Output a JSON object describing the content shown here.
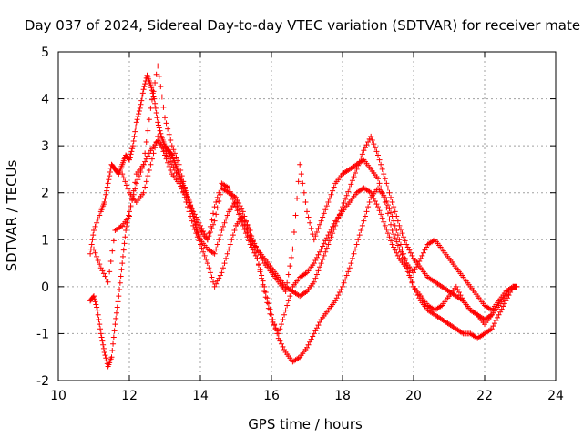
{
  "chart_data": {
    "type": "scatter",
    "title": "Day 037 of 2024, Sidereal Day-to-day VTEC variation (SDTVAR) for receiver mate",
    "xlabel": "GPS time / hours",
    "ylabel": "SDTVAR / TECUs",
    "xlim": [
      10,
      24
    ],
    "ylim": [
      -2,
      5
    ],
    "xticks": [
      10,
      12,
      14,
      16,
      18,
      20,
      22,
      24
    ],
    "yticks": [
      -2,
      -1,
      0,
      1,
      2,
      3,
      4,
      5
    ],
    "grid": true,
    "marker": "+",
    "color": "#ff0000",
    "series": [
      {
        "name": "trace-1",
        "x": [
          10.9,
          11.0,
          11.2,
          11.3,
          11.4,
          11.5,
          11.6,
          11.7,
          11.8,
          11.9,
          12.0,
          12.1,
          12.2,
          12.3,
          12.4,
          12.5,
          12.6,
          12.7,
          12.8,
          12.9,
          13.0,
          13.1,
          13.2,
          13.3,
          13.4,
          13.5,
          13.6,
          13.7,
          13.8,
          13.9,
          14.0,
          14.2,
          14.4,
          14.6,
          14.8,
          15.0,
          15.2,
          15.4,
          15.6,
          15.8,
          16.0,
          16.2,
          16.4,
          16.6,
          16.8,
          17.0,
          17.2,
          17.4,
          17.6,
          17.8,
          18.0,
          18.2,
          18.4,
          18.6,
          18.8,
          19.0,
          19.2,
          19.4,
          19.6,
          19.8,
          20.0,
          20.2,
          20.4,
          20.6,
          20.8,
          21.0,
          21.2,
          21.4,
          21.6,
          21.8,
          22.0,
          22.2,
          22.4,
          22.6,
          22.8,
          22.9
        ],
        "y": [
          0.7,
          1.2,
          1.6,
          1.8,
          2.2,
          2.6,
          2.5,
          2.4,
          2.6,
          2.8,
          2.7,
          3.0,
          3.5,
          3.8,
          4.2,
          4.5,
          4.3,
          4.0,
          3.5,
          3.2,
          3.0,
          2.9,
          2.8,
          2.6,
          2.4,
          2.2,
          2.0,
          1.8,
          1.5,
          1.2,
          1.0,
          0.8,
          0.7,
          1.2,
          1.6,
          1.8,
          1.4,
          1.0,
          0.8,
          0.6,
          0.4,
          0.2,
          0.0,
          -0.1,
          -0.2,
          -0.1,
          0.1,
          0.5,
          0.9,
          1.3,
          1.7,
          2.1,
          2.5,
          2.9,
          3.2,
          2.8,
          2.3,
          1.8,
          1.3,
          0.9,
          0.6,
          0.4,
          0.2,
          0.1,
          0.0,
          -0.1,
          -0.2,
          -0.3,
          -0.5,
          -0.6,
          -0.7,
          -0.6,
          -0.4,
          -0.2,
          0.0,
          0.0
        ]
      },
      {
        "name": "trace-2",
        "x": [
          10.9,
          11.0,
          11.1,
          11.2,
          11.3,
          11.4,
          11.5,
          11.6,
          11.7,
          11.8,
          11.9,
          12.0,
          12.2,
          12.4,
          12.6,
          12.8,
          13.0,
          13.2,
          13.4,
          13.6,
          13.8,
          14.0,
          14.2,
          14.4,
          14.6,
          14.8,
          15.0,
          15.2,
          15.4,
          15.6,
          15.8,
          16.0,
          16.2,
          16.4,
          16.6,
          16.8,
          17.0,
          17.2,
          17.4,
          17.6,
          17.8,
          18.0,
          18.2,
          18.4,
          18.6,
          18.8,
          19.0,
          19.2,
          19.4,
          19.6,
          19.8,
          20.0,
          20.2,
          20.4,
          20.6,
          20.8,
          21.0,
          21.2,
          21.4,
          21.6,
          21.8,
          22.0,
          22.2,
          22.4,
          22.6,
          22.8,
          22.9
        ],
        "y": [
          -0.3,
          -0.2,
          -0.5,
          -1.0,
          -1.4,
          -1.7,
          -1.5,
          -0.8,
          -0.2,
          0.5,
          1.2,
          1.6,
          2.2,
          2.6,
          2.9,
          3.1,
          2.9,
          2.6,
          2.3,
          1.8,
          1.3,
          0.9,
          0.5,
          0.0,
          0.3,
          0.8,
          1.3,
          1.5,
          1.2,
          0.6,
          0.0,
          -0.6,
          -1.1,
          -1.4,
          -1.6,
          -1.5,
          -1.3,
          -1.0,
          -0.7,
          -0.5,
          -0.3,
          0.0,
          0.4,
          0.9,
          1.4,
          1.9,
          2.1,
          1.9,
          1.5,
          1.0,
          0.5,
          0.0,
          -0.3,
          -0.5,
          -0.6,
          -0.7,
          -0.8,
          -0.9,
          -1.0,
          -1.0,
          -1.1,
          -1.0,
          -0.9,
          -0.6,
          -0.3,
          0.0,
          0.0
        ]
      },
      {
        "name": "trace-3",
        "x": [
          11.0,
          11.2,
          11.4,
          11.6,
          11.8,
          12.0,
          12.2,
          12.4,
          12.6,
          12.8,
          13.0,
          13.2,
          13.4,
          13.6,
          13.8,
          14.0,
          14.2,
          14.4,
          14.6,
          14.8,
          15.0,
          15.2,
          15.4,
          15.6,
          15.8,
          16.0,
          16.2,
          16.4,
          16.6,
          16.8,
          17.0,
          17.2,
          17.4,
          17.6,
          17.8,
          18.0,
          18.2,
          18.4,
          18.6,
          18.8,
          19.0,
          19.2,
          19.4,
          19.6,
          19.8,
          20.0,
          20.2,
          20.4,
          20.6,
          20.8,
          21.0,
          21.2,
          21.4,
          21.6,
          21.8,
          22.0,
          22.2,
          22.4,
          22.6,
          22.8
        ],
        "y": [
          0.8,
          0.4,
          0.1,
          1.2,
          1.3,
          1.5,
          2.4,
          2.6,
          3.8,
          4.7,
          3.6,
          3.0,
          2.6,
          2.0,
          1.5,
          1.2,
          1.0,
          1.4,
          2.1,
          2.0,
          1.9,
          1.6,
          1.1,
          0.8,
          0.5,
          0.3,
          0.1,
          -0.1,
          0.8,
          2.6,
          1.6,
          1.0,
          1.4,
          1.8,
          2.2,
          2.4,
          2.5,
          2.6,
          2.7,
          2.5,
          2.3,
          1.8,
          1.2,
          0.8,
          0.5,
          0.3,
          0.6,
          0.9,
          1.0,
          0.8,
          0.6,
          0.4,
          0.2,
          0.0,
          -0.2,
          -0.4,
          -0.5,
          -0.3,
          -0.1,
          0.0
        ]
      },
      {
        "name": "trace-4",
        "x": [
          11.8,
          12.0,
          12.2,
          12.4,
          12.6,
          12.8,
          13.0,
          13.2,
          13.4,
          13.6,
          13.8,
          14.0,
          14.2,
          14.4,
          14.6,
          14.8,
          15.0,
          15.2,
          15.4,
          15.6,
          15.8,
          16.0,
          16.2,
          16.4,
          16.6,
          16.8,
          17.0,
          17.2,
          17.4,
          17.6,
          17.8,
          18.0,
          18.2,
          18.4,
          18.6,
          18.8,
          19.0,
          19.2,
          19.4,
          19.6,
          19.8,
          20.0,
          20.2,
          20.4,
          20.6,
          20.8,
          21.0,
          21.2,
          21.4,
          21.6,
          21.8,
          22.0,
          22.2
        ],
        "y": [
          2.4,
          2.0,
          1.8,
          2.0,
          2.6,
          3.2,
          2.8,
          2.4,
          2.2,
          1.9,
          1.6,
          1.3,
          1.0,
          1.7,
          2.2,
          2.1,
          1.7,
          1.3,
          0.9,
          0.6,
          -0.1,
          -0.7,
          -1.0,
          -0.5,
          0.0,
          0.2,
          0.3,
          0.5,
          0.8,
          1.1,
          1.4,
          1.6,
          1.8,
          2.0,
          2.1,
          2.0,
          1.7,
          1.3,
          0.9,
          0.6,
          0.4,
          0.0,
          -0.2,
          -0.4,
          -0.5,
          -0.4,
          -0.2,
          0.0,
          -0.3,
          -0.5,
          -0.6,
          -0.8,
          -0.6
        ]
      }
    ]
  }
}
